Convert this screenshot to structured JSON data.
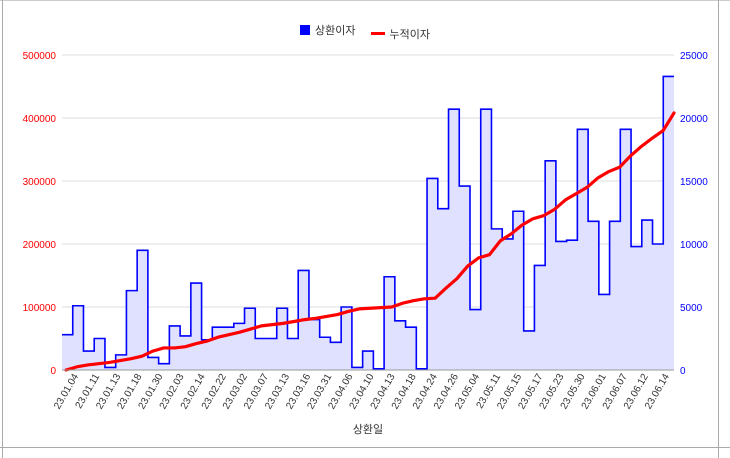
{
  "chart_data": {
    "type": "bar+line",
    "xlabel": "상환일",
    "legend": {
      "position": "top-center"
    },
    "grid": true,
    "y_left": {
      "range": [
        0,
        500000
      ],
      "ticks": [
        0,
        100000,
        200000,
        300000,
        400000,
        500000
      ],
      "tick_labels": [
        "0",
        "100000",
        "200000",
        "300000",
        "400000",
        "500000"
      ],
      "color": "#ff0000"
    },
    "y_right": {
      "range": [
        0,
        25000
      ],
      "ticks": [
        0,
        5000,
        10000,
        15000,
        20000,
        25000
      ],
      "tick_labels": [
        "0",
        "5000",
        "10000",
        "15000",
        "20000",
        "25000"
      ],
      "color": "#0000ff"
    },
    "x_tick_labels": [
      "23.01.04",
      "23.01.11",
      "23.01.13",
      "23.01.18",
      "23.01.30",
      "23.02.03",
      "23.02.14",
      "23.02.22",
      "23.03.02",
      "23.03.07",
      "23.03.13",
      "23.03.16",
      "23.03.31",
      "23.04.06",
      "23.04.10",
      "23.04.13",
      "23.04.18",
      "23.04.24",
      "23.04.26",
      "23.05.04",
      "23.05.11",
      "23.05.15",
      "23.05.17",
      "23.05.23",
      "23.05.30",
      "23.06.01",
      "23.06.07",
      "23.06.12",
      "23.06.14"
    ],
    "series": [
      {
        "name": "상환이자",
        "kind": "step-area",
        "axis": "right",
        "color": "#0000ff",
        "fill": "#e0e0ff",
        "values": [
          2800,
          5100,
          1500,
          2500,
          200,
          1200,
          6300,
          9500,
          1000,
          500,
          3500,
          2700,
          6900,
          2400,
          3400,
          3400,
          3700,
          4900,
          2500,
          2500,
          4900,
          2500,
          7900,
          4000,
          2600,
          2200,
          5000,
          200,
          1500,
          100,
          7400,
          3900,
          3400,
          100,
          15200,
          12800,
          20700,
          14600,
          4800,
          20700,
          11200,
          10400,
          12600,
          3100,
          8300,
          16600,
          10200,
          10300,
          19100,
          11800,
          6000,
          11800,
          19100,
          9800,
          11900,
          10000,
          23300
        ],
        "segment_labels": [
          "23.01.04",
          "23.01.11",
          "23.01.13",
          "23.01.18",
          "23.01.30",
          "23.02.03",
          "23.02.14",
          "23.02.22",
          "23.03.02",
          "23.03.07",
          "23.03.13",
          "23.03.16",
          "23.03.31",
          "23.04.06",
          "23.04.10",
          "23.04.13",
          "23.04.18",
          "23.04.24",
          "23.04.26",
          "23.05.04",
          "23.05.11",
          "23.05.15",
          "23.05.17",
          "23.05.23",
          "23.05.30",
          "23.06.01",
          "23.06.07",
          "23.06.12",
          "23.06.14"
        ]
      },
      {
        "name": "누적이자",
        "kind": "line",
        "axis": "left",
        "color": "#ff0000",
        "values": [
          0,
          5000,
          8000,
          10000,
          12000,
          15000,
          18000,
          22000,
          30000,
          35000,
          35000,
          37000,
          42000,
          46000,
          52000,
          56000,
          60000,
          65000,
          70000,
          72000,
          74000,
          77000,
          80000,
          82000,
          85000,
          88000,
          93000,
          97000,
          98000,
          99000,
          100000,
          106000,
          110000,
          113000,
          114000,
          130000,
          145000,
          165000,
          178000,
          183000,
          205000,
          216000,
          230000,
          240000,
          245000,
          255000,
          270000,
          280000,
          290000,
          305000,
          315000,
          322000,
          340000,
          355000,
          368000,
          380000,
          408000
        ]
      }
    ]
  }
}
